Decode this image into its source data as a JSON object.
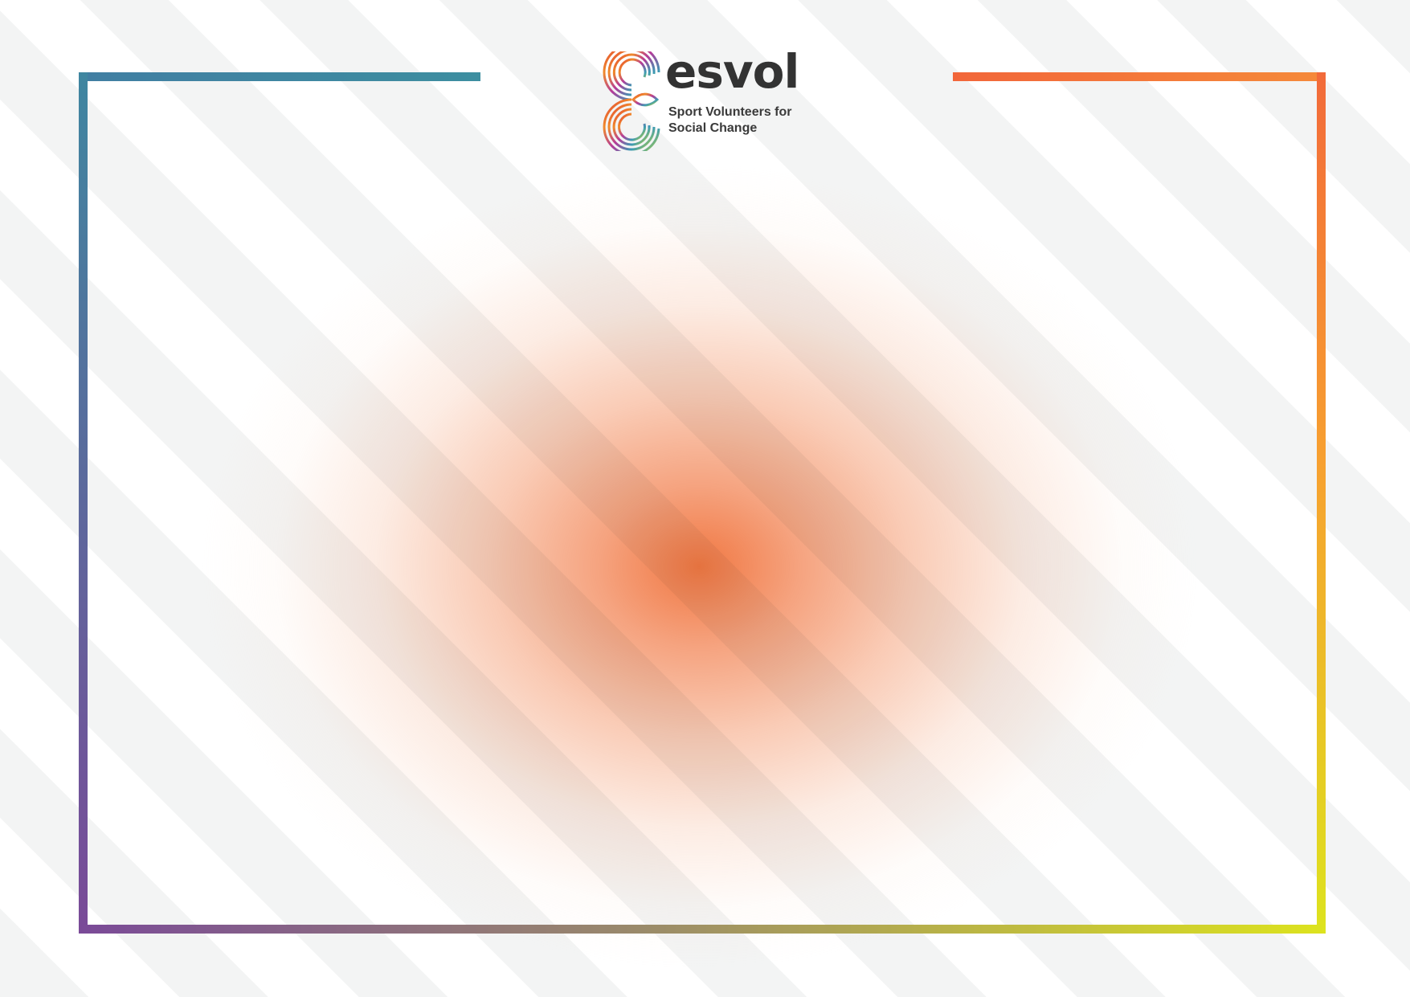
{
  "logo": {
    "wordmark": "esvol",
    "tagline_line1": "Sport Volunteers for",
    "tagline_line2": "Social Change",
    "icon": "esvol-rainbow-e-icon"
  },
  "colors": {
    "background": "#ffffff",
    "stripe": "#f3f4f4",
    "glow": "#f07038",
    "frame_left_top": "#3f86a0",
    "frame_left_bottom": "#7a4a98",
    "frame_right_top": "#f26a3a",
    "frame_right_bottom": "#dde31e",
    "wordmark": "#333333"
  }
}
